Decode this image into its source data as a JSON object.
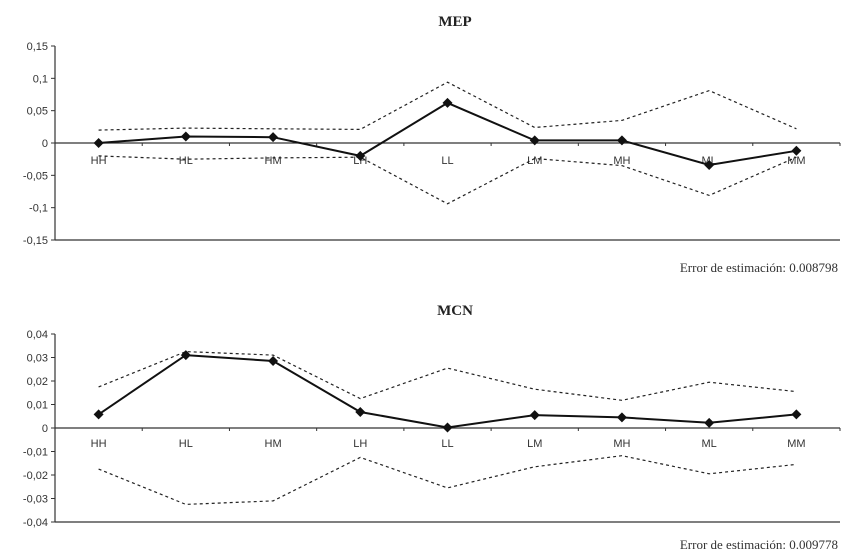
{
  "chart_data": [
    {
      "type": "line",
      "title": "MEP",
      "categories": [
        "HH",
        "HL",
        "HM",
        "LH",
        "LL",
        "LM",
        "MH",
        "ML",
        "MM"
      ],
      "ylim": [
        -0.15,
        0.15
      ],
      "yticks": [
        "0,15",
        "0,1",
        "0,05",
        "0",
        "-0,05",
        "-0,1",
        "-0,15"
      ],
      "ytick_values": [
        0.15,
        0.1,
        0.05,
        0,
        -0.05,
        -0.1,
        -0.15
      ],
      "series": [
        {
          "values": [
            0.0,
            0.01,
            0.009,
            -0.02,
            0.062,
            0.004,
            0.004,
            -0.034,
            -0.012
          ],
          "style": "solid",
          "marker": "diamond",
          "color": "#111111"
        },
        {
          "values": [
            0.02,
            0.023,
            0.022,
            0.021,
            0.094,
            0.024,
            0.035,
            0.081,
            0.022
          ],
          "style": "dashed",
          "color": "#222222"
        },
        {
          "values": [
            -0.02,
            -0.025,
            -0.023,
            -0.022,
            -0.094,
            -0.024,
            -0.035,
            -0.081,
            -0.022
          ],
          "style": "dashed",
          "color": "#222222"
        }
      ],
      "footnote": "Error de estimación: 0.008798"
    },
    {
      "type": "line",
      "title": "MCN",
      "categories": [
        "HH",
        "HL",
        "HM",
        "LH",
        "LL",
        "LM",
        "MH",
        "ML",
        "MM"
      ],
      "ylim": [
        -0.04,
        0.04
      ],
      "yticks": [
        "0,04",
        "0,03",
        "0,02",
        "0,01",
        "0",
        "-0,01",
        "-0,02",
        "-0,03",
        "-0,04"
      ],
      "ytick_values": [
        0.04,
        0.03,
        0.02,
        0.01,
        0,
        -0.01,
        -0.02,
        -0.03,
        -0.04
      ],
      "series": [
        {
          "values": [
            0.0058,
            0.031,
            0.0285,
            0.0068,
            0.0002,
            0.0055,
            0.0045,
            0.0022,
            0.0058
          ],
          "style": "solid",
          "marker": "diamond",
          "color": "#111111"
        },
        {
          "values": [
            0.0175,
            0.0325,
            0.031,
            0.0125,
            0.0255,
            0.0165,
            0.0118,
            0.0195,
            0.0155
          ],
          "style": "dashed",
          "color": "#222222"
        },
        {
          "values": [
            -0.0175,
            -0.0325,
            -0.031,
            -0.0125,
            -0.0255,
            -0.0165,
            -0.0118,
            -0.0195,
            -0.0155
          ],
          "style": "dashed",
          "color": "#222222"
        }
      ],
      "footnote": "Error de estimación: 0.009778"
    }
  ]
}
